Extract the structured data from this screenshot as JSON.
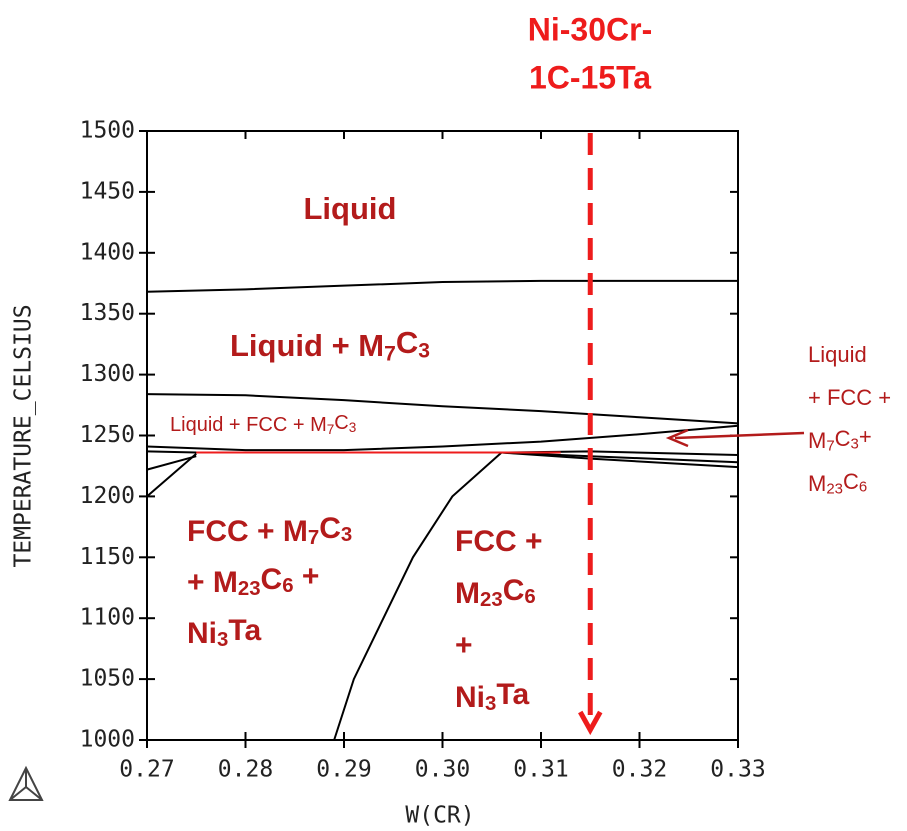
{
  "chart_data": {
    "type": "line",
    "title": [
      "Ni-30Cr-",
      "1C-15Ta"
    ],
    "x_label": "W(CR)",
    "y_label": "TEMPERATURE_CELSIUS",
    "xlim": [
      0.27,
      0.33
    ],
    "ylim": [
      1000,
      1500
    ],
    "xticks": [
      0.27,
      0.28,
      0.29,
      {
        "value": 0.3,
        "label": "0.30"
      },
      0.31,
      0.32,
      0.33
    ],
    "yticks": [
      1000,
      1050,
      1100,
      1150,
      1200,
      1250,
      1300,
      1350,
      1400,
      1450,
      1500
    ],
    "marker_x": 0.315,
    "marker_color": "#ee1c1c",
    "series": [
      {
        "color": "#000000",
        "x": [
          0.27,
          0.28,
          0.29,
          0.3,
          0.31,
          0.32,
          0.33
        ],
        "values": [
          1368,
          1370,
          1373,
          1376,
          1377,
          1377,
          1377
        ]
      },
      {
        "color": "#000000",
        "x": [
          0.27,
          0.28,
          0.29,
          0.3,
          0.31,
          0.32,
          0.33
        ],
        "values": [
          1284,
          1283,
          1279,
          1274,
          1270,
          1265,
          1260
        ]
      },
      {
        "color": "#000000",
        "x": [
          0.27,
          0.28,
          0.29,
          0.3,
          0.31,
          0.32,
          0.33
        ],
        "values": [
          1241,
          1238,
          1238,
          1241,
          1245,
          1251,
          1258
        ]
      },
      {
        "color": "#000000",
        "x": [
          0.306,
          0.315,
          0.33
        ],
        "values": [
          1236,
          1237,
          1234
        ]
      },
      {
        "color": "#000000",
        "x": [
          0.306,
          0.315,
          0.33
        ],
        "values": [
          1236,
          1233,
          1228
        ]
      },
      {
        "color": "#000000",
        "x": [
          0.306,
          0.315,
          0.33
        ],
        "values": [
          1236,
          1231,
          1224
        ]
      },
      {
        "color": "#000000",
        "x": [
          0.27,
          0.275
        ],
        "values": [
          1200,
          1235
        ]
      },
      {
        "color": "#000000",
        "x": [
          0.27,
          0.275
        ],
        "values": [
          1222,
          1233
        ]
      },
      {
        "color": "#000000",
        "x": [
          0.27,
          0.275,
          0.28
        ],
        "values": [
          1237,
          1236,
          1236
        ]
      },
      {
        "color": "#000000",
        "x": [
          0.289,
          0.291,
          0.294,
          0.297,
          0.301,
          0.306
        ],
        "values": [
          1000,
          1050,
          1100,
          1150,
          1200,
          1236
        ]
      },
      {
        "color": "#ee1c1c",
        "x": [
          0.275,
          0.312
        ],
        "values": [
          1236,
          1236
        ]
      }
    ],
    "annotations": [
      [
        "Liquid"
      ],
      [
        "Liquid + M7C3"
      ],
      [
        "Liquid + FCC + M7C3"
      ],
      [
        "FCC + M7C3",
        "+ M23C6 +",
        "Ni3Ta"
      ],
      [
        "FCC +",
        "M23C6",
        "+",
        "Ni3Ta"
      ],
      [
        "Liquid",
        "+ FCC +",
        "M7C3+",
        "M23C6"
      ]
    ]
  }
}
